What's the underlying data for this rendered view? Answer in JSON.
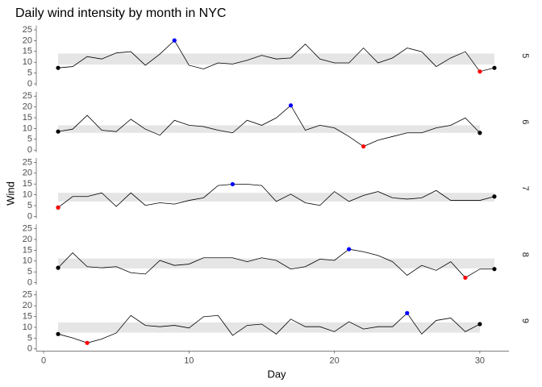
{
  "chart_data": {
    "type": "line",
    "title": "Daily wind intensity by month in NYC",
    "x_label": "Day",
    "y_label": "Wind",
    "xlim": [
      -0.5,
      32
    ],
    "xticks": [
      0,
      10,
      20,
      30
    ],
    "ylim": [
      -1,
      27
    ],
    "yticks": [
      0,
      5,
      10,
      15,
      20,
      25
    ],
    "line_color": "#000000",
    "band_color": "#e5e5e5",
    "min_color": "#ff0000",
    "max_color": "#0000ff",
    "end_color": "#000000",
    "panels": [
      {
        "label": "5",
        "band": [
          8.9,
          14.05
        ],
        "x": [
          1,
          2,
          3,
          4,
          5,
          6,
          7,
          8,
          9,
          10,
          11,
          12,
          13,
          14,
          15,
          16,
          17,
          18,
          19,
          20,
          21,
          22,
          23,
          24,
          25,
          26,
          27,
          28,
          29,
          30,
          31
        ],
        "values": [
          7.4,
          8.0,
          12.6,
          11.5,
          14.3,
          14.9,
          8.6,
          13.8,
          20.1,
          8.6,
          6.9,
          9.7,
          9.2,
          10.9,
          13.2,
          11.5,
          12.0,
          18.4,
          11.5,
          9.7,
          9.7,
          16.6,
          9.7,
          12.0,
          16.6,
          14.9,
          8.0,
          12.0,
          14.9,
          5.7,
          7.4
        ]
      },
      {
        "label": "6",
        "band": [
          8.0,
          11.5
        ],
        "x": [
          1,
          2,
          3,
          4,
          5,
          6,
          7,
          8,
          9,
          10,
          11,
          12,
          13,
          14,
          15,
          16,
          17,
          18,
          19,
          20,
          21,
          22,
          23,
          24,
          25,
          26,
          27,
          28,
          29,
          30
        ],
        "values": [
          8.6,
          9.7,
          16.1,
          9.2,
          8.6,
          14.3,
          9.7,
          6.9,
          13.8,
          11.5,
          10.9,
          9.2,
          8.0,
          13.8,
          11.5,
          14.9,
          20.7,
          9.2,
          11.5,
          10.3,
          6.3,
          1.7,
          4.6,
          6.3,
          8.0,
          8.0,
          10.3,
          11.5,
          14.9,
          8.0
        ]
      },
      {
        "label": "7",
        "band": [
          6.9,
          10.9
        ],
        "x": [
          1,
          2,
          3,
          4,
          5,
          6,
          7,
          8,
          9,
          10,
          11,
          12,
          13,
          14,
          15,
          16,
          17,
          18,
          19,
          20,
          21,
          22,
          23,
          24,
          25,
          26,
          27,
          28,
          29,
          30,
          31
        ],
        "values": [
          4.1,
          9.2,
          9.2,
          10.9,
          4.6,
          10.9,
          5.1,
          6.3,
          5.7,
          7.4,
          8.6,
          14.3,
          14.9,
          14.9,
          14.3,
          6.9,
          10.3,
          6.3,
          5.1,
          11.5,
          6.9,
          9.7,
          11.5,
          8.6,
          8.0,
          8.6,
          12.0,
          7.4,
          7.4,
          7.4,
          9.2
        ]
      },
      {
        "label": "8",
        "band": [
          6.6,
          11.2
        ],
        "x": [
          1,
          2,
          3,
          4,
          5,
          6,
          7,
          8,
          9,
          10,
          11,
          12,
          13,
          14,
          15,
          16,
          17,
          18,
          19,
          20,
          21,
          22,
          23,
          24,
          25,
          26,
          27,
          28,
          29,
          30,
          31
        ],
        "values": [
          6.9,
          13.8,
          7.4,
          6.9,
          7.4,
          4.6,
          4.0,
          10.3,
          8.0,
          8.6,
          11.5,
          11.5,
          11.5,
          9.7,
          11.5,
          10.3,
          6.3,
          7.4,
          10.9,
          10.3,
          15.5,
          14.3,
          12.6,
          9.7,
          3.4,
          8.0,
          5.7,
          9.7,
          2.3,
          6.3,
          6.3
        ]
      },
      {
        "label": "9",
        "band": [
          7.55,
          12.3
        ],
        "x": [
          1,
          2,
          3,
          4,
          5,
          6,
          7,
          8,
          9,
          10,
          11,
          12,
          13,
          14,
          15,
          16,
          17,
          18,
          19,
          20,
          21,
          22,
          23,
          24,
          25,
          26,
          27,
          28,
          29,
          30
        ],
        "values": [
          6.9,
          5.1,
          2.8,
          4.6,
          7.4,
          15.5,
          10.9,
          10.3,
          10.9,
          9.7,
          14.9,
          15.5,
          6.3,
          10.9,
          11.5,
          6.9,
          13.8,
          10.3,
          10.3,
          8.0,
          12.6,
          9.2,
          10.3,
          10.3,
          16.6,
          6.9,
          13.2,
          14.3,
          8.0,
          11.5
        ]
      }
    ]
  }
}
